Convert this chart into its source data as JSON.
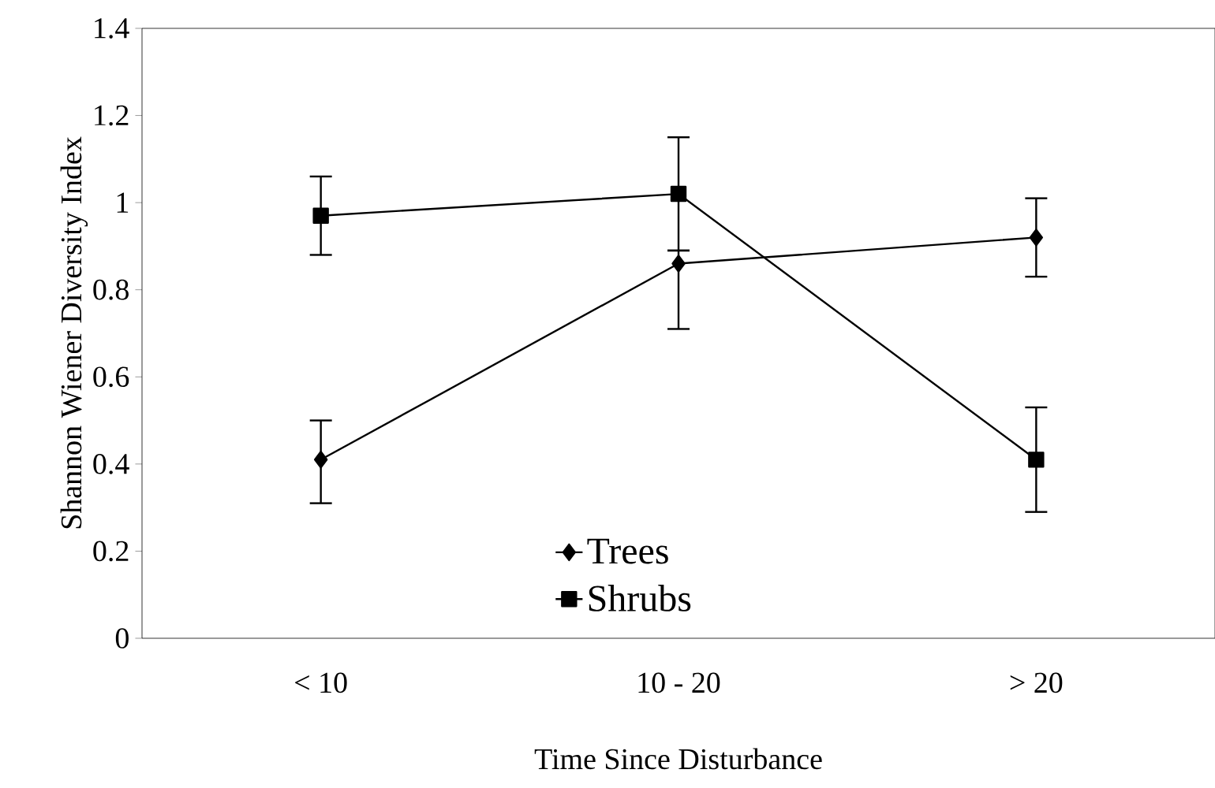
{
  "chart_data": {
    "type": "line",
    "xlabel": "Time Since Disturbance",
    "ylabel": "Shannon Wiener Diversity Index",
    "categories": [
      "< 10",
      "10 - 20",
      "> 20"
    ],
    "series": [
      {
        "name": "Trees",
        "color": "#000000",
        "marker": "diamond",
        "values": [
          0.41,
          0.86,
          0.92
        ],
        "errors": [
          [
            0.31,
            0.5
          ],
          [
            0.71,
            0.89
          ],
          [
            0.83,
            1.01
          ]
        ]
      },
      {
        "name": "Shrubs",
        "color": "#000000",
        "marker": "square",
        "values": [
          0.97,
          1.02,
          0.41
        ],
        "errors": [
          [
            0.88,
            1.06
          ],
          [
            0.89,
            1.15
          ],
          [
            0.29,
            0.53
          ]
        ]
      }
    ],
    "ylim": [
      0,
      1.4
    ],
    "yticks": [
      0,
      0.2,
      0.4,
      0.6,
      0.8,
      1,
      1.2,
      1.4
    ],
    "legend": "bottom",
    "grid": false,
    "line_style": "solid"
  }
}
